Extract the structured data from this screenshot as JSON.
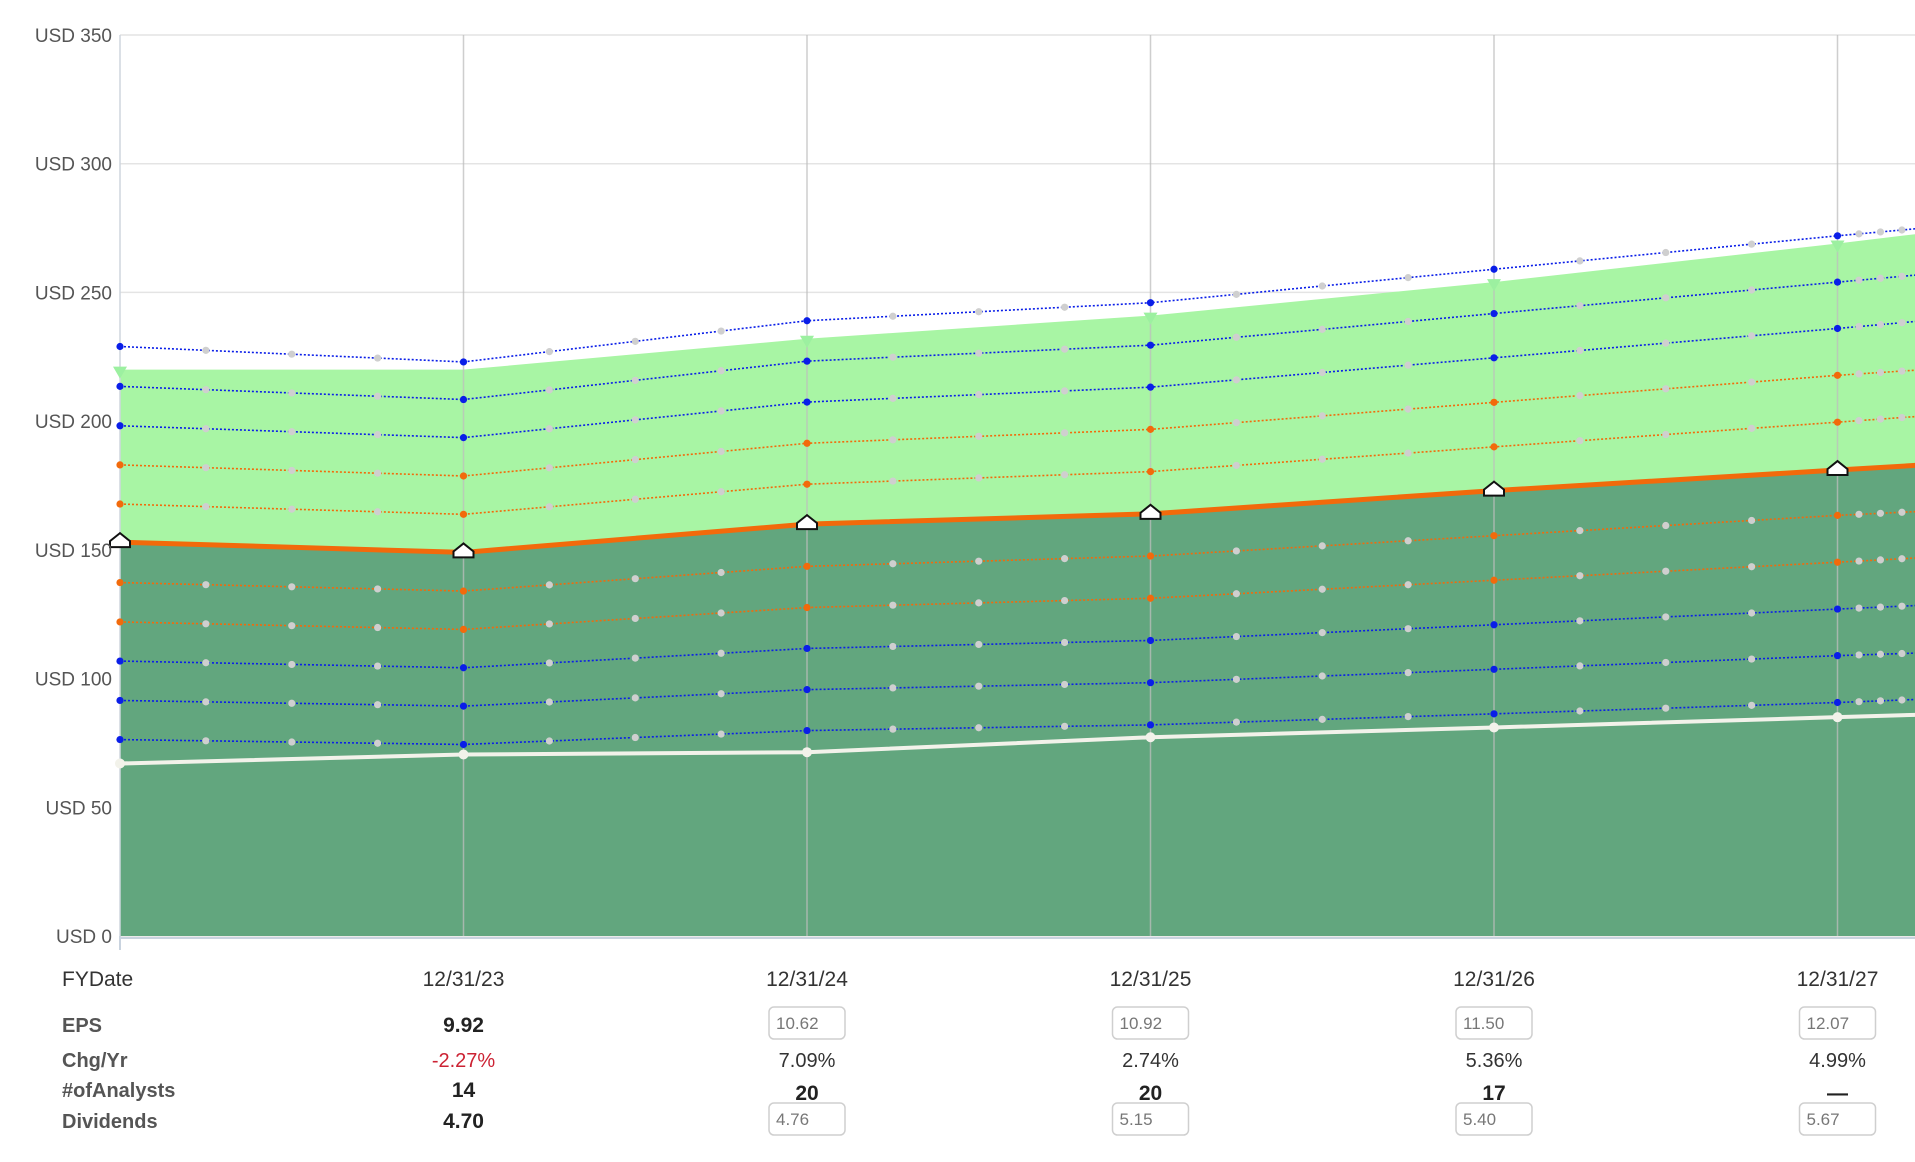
{
  "chart_data": {
    "type": "area",
    "y_axis": {
      "prefix": "USD",
      "ticks": [
        "USD 0",
        "USD 50",
        "USD 100",
        "USD 150",
        "USD 200",
        "USD 250",
        "USD 300",
        "USD 350"
      ],
      "ylim": [
        0,
        350
      ]
    },
    "x_axis": {
      "label": "FYDate",
      "ticks": [
        "12/31/23",
        "12/31/24",
        "12/31/25",
        "12/31/26",
        "12/31/27"
      ]
    },
    "x": [
      0,
      1,
      2,
      3,
      4,
      5,
      5.25
    ],
    "series": [
      {
        "name": "price-area-light",
        "kind": "area",
        "color": "#a8f5a4",
        "values": [
          220,
          220,
          232,
          241,
          254,
          269,
          273
        ]
      },
      {
        "name": "price-area-dark",
        "kind": "area",
        "color": "#62a67e",
        "values": [
          153,
          149,
          160,
          164,
          173,
          181,
          183
        ]
      },
      {
        "name": "normal-pe-price",
        "kind": "line",
        "color": "#f26a0b",
        "values": [
          153,
          149,
          160,
          164,
          173,
          181,
          183
        ]
      },
      {
        "name": "dividends-line",
        "kind": "line",
        "color": "#f2f2ea",
        "values": [
          67,
          70.5,
          71.4,
          77.2,
          81,
          85,
          86
        ]
      },
      {
        "name": "band-blue-1",
        "kind": "dotted",
        "color": "#0a1ee8",
        "values": [
          229,
          223,
          239,
          246,
          259,
          272,
          275
        ]
      },
      {
        "name": "band-blue-2",
        "kind": "dotted",
        "color": "#0a1ee8",
        "values": [
          213.5,
          208.4,
          223.3,
          229.5,
          241.8,
          254,
          257
        ]
      },
      {
        "name": "band-blue-3",
        "kind": "dotted",
        "color": "#0a1ee8",
        "values": [
          198.2,
          193.6,
          207.4,
          213.2,
          224.6,
          236,
          239
        ]
      },
      {
        "name": "band-orange-1",
        "kind": "dotted",
        "color": "#f26a0b",
        "values": [
          183,
          178.7,
          191.4,
          196.8,
          207.3,
          217.8,
          220
        ]
      },
      {
        "name": "band-orange-2",
        "kind": "dotted",
        "color": "#f26a0b",
        "values": [
          167.8,
          163.8,
          175.5,
          180.4,
          190,
          199.6,
          202
        ]
      },
      {
        "name": "band-orange-3",
        "kind": "dotted",
        "color": "#f26a0b",
        "values": [
          137.3,
          134,
          143.6,
          147.6,
          155.5,
          163.4,
          165
        ]
      },
      {
        "name": "band-orange-4",
        "kind": "dotted",
        "color": "#f26a0b",
        "values": [
          122,
          119.1,
          127.6,
          131.2,
          138.2,
          145.2,
          147
        ]
      },
      {
        "name": "band-blue-4",
        "kind": "dotted",
        "color": "#0a1ee8",
        "values": [
          106.8,
          104.2,
          111.7,
          114.8,
          120.9,
          127,
          128.5
        ]
      },
      {
        "name": "band-blue-5",
        "kind": "dotted",
        "color": "#0a1ee8",
        "values": [
          91.5,
          89.3,
          95.7,
          98.4,
          103.6,
          108.9,
          110
        ]
      },
      {
        "name": "band-blue-6",
        "kind": "dotted",
        "color": "#0a1ee8",
        "values": [
          76.3,
          74.4,
          79.8,
          82,
          86.3,
          90.7,
          92
        ]
      }
    ],
    "gray_markers": [
      {
        "name": "top",
        "values": [
          229,
          223,
          239,
          246,
          259,
          272,
          275
        ]
      }
    ],
    "table": {
      "columns": [
        "12/31/23",
        "12/31/24",
        "12/31/25",
        "12/31/26",
        "12/31/27"
      ],
      "rows": [
        {
          "label": "EPS",
          "values": [
            "9.92",
            "10.62",
            "10.92",
            "11.50",
            "12.07"
          ],
          "estimate": [
            false,
            true,
            true,
            true,
            true
          ]
        },
        {
          "label": "Chg/Yr",
          "values": [
            "-2.27%",
            "7.09%",
            "2.74%",
            "5.36%",
            "4.99%"
          ],
          "estimate": [
            false,
            false,
            false,
            false,
            false
          ]
        },
        {
          "label": "#ofAnalysts",
          "values": [
            "14",
            "20",
            "20",
            "17",
            "—"
          ],
          "estimate": [
            false,
            false,
            false,
            false,
            false
          ]
        },
        {
          "label": "Dividends",
          "values": [
            "4.70",
            "4.76",
            "5.15",
            "5.40",
            "5.67"
          ],
          "estimate": [
            false,
            true,
            true,
            true,
            true
          ]
        }
      ]
    }
  }
}
